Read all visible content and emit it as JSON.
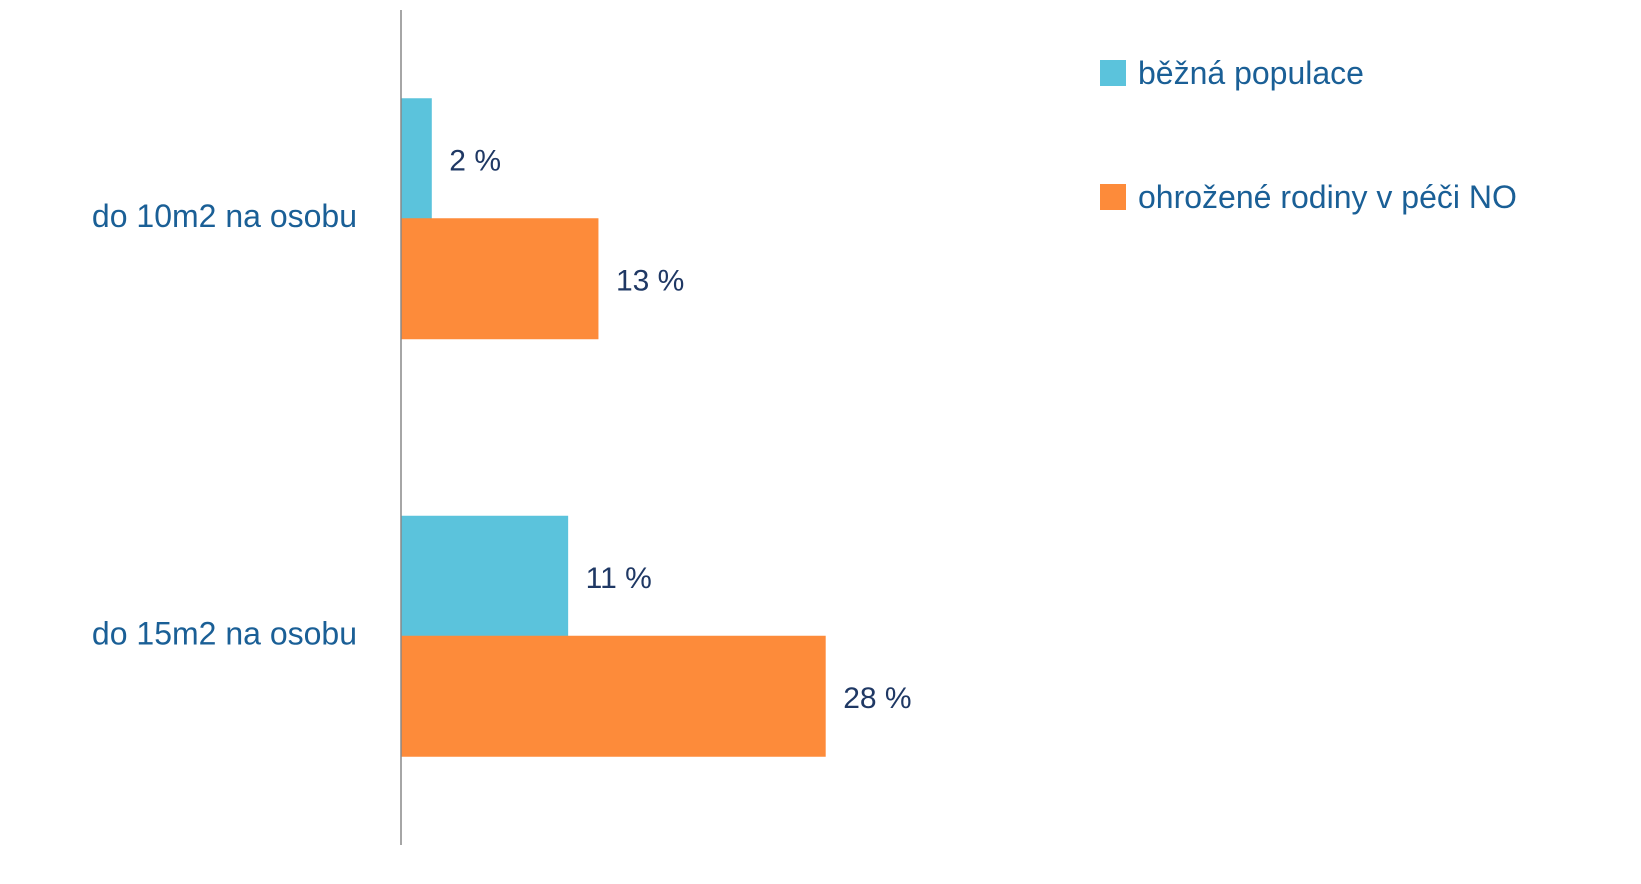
{
  "chart_data": {
    "type": "hbar",
    "categories": [
      "do 10m2 na osobu",
      "do 15m2 na osobu"
    ],
    "series": [
      {
        "name": "běžná populace",
        "color": "#5bc3dc",
        "values": [
          2,
          11
        ],
        "value_labels": [
          "2 %",
          "11 %"
        ]
      },
      {
        "name": "ohrožené rodiny v péči NO",
        "color": "#fd8b3a",
        "values": [
          13,
          28
        ],
        "value_labels": [
          "13 %",
          "28 %"
        ]
      }
    ],
    "xlim": [
      0,
      40
    ],
    "legend": "top-right"
  }
}
